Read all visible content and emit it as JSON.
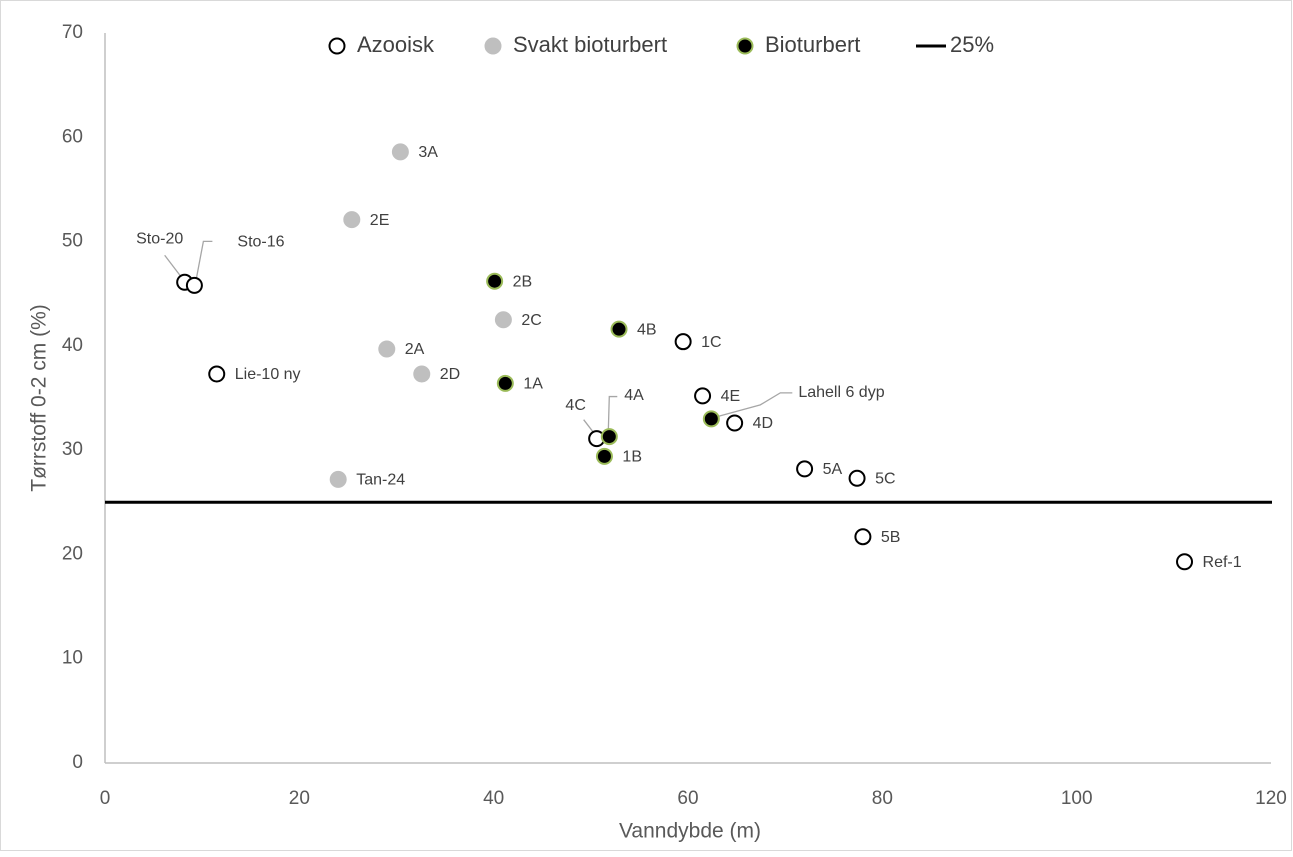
{
  "chart_data": {
    "type": "scatter",
    "xlabel": "Vanndybde (m)",
    "ylabel": "Tørrstoff 0-2 cm (%)",
    "xlim": [
      0,
      120
    ],
    "xticks": [
      0,
      20,
      40,
      60,
      80,
      100,
      120
    ],
    "ylim": [
      0,
      70
    ],
    "yticks": [
      0,
      10,
      20,
      30,
      40,
      50,
      60,
      70
    ],
    "legend": "top",
    "series": [
      {
        "name": "Azooisk",
        "color": "#ffffff",
        "edge": "#000000",
        "x": [
          8.2,
          9.2,
          11.5,
          50.6,
          59.5,
          61.5,
          64.8,
          72.0,
          77.4,
          78.0,
          111.1
        ],
        "values": [
          46.1,
          45.8,
          37.3,
          31.1,
          40.4,
          35.2,
          32.6,
          28.2,
          27.3,
          21.7,
          19.3
        ],
        "labels": [
          "Sto-20",
          "Sto-16",
          "Lie-10 ny",
          "4C",
          "1C",
          "4E",
          "4D",
          "5A",
          "5C",
          "5B",
          "Ref-1"
        ]
      },
      {
        "name": "Svakt bioturbert",
        "color": "#bfbfbf",
        "edge": "#bfbfbf",
        "x": [
          30.4,
          25.4,
          41.0,
          29.0,
          32.6,
          24.0
        ],
        "values": [
          58.6,
          52.1,
          42.5,
          39.7,
          37.3,
          27.2
        ],
        "labels": [
          "3A",
          "2E",
          "2C",
          "2A",
          "2D",
          "Tan-24"
        ]
      },
      {
        "name": "Bioturbert",
        "color": "#000000",
        "edge": "#9bbb59",
        "x": [
          40.1,
          52.9,
          41.2,
          51.9,
          51.4,
          62.4
        ],
        "values": [
          46.2,
          41.6,
          36.4,
          31.3,
          29.4,
          33.0
        ],
        "labels": [
          "2B",
          "4B",
          "1A",
          "4A",
          "1B",
          "Lahell 6 dyp"
        ]
      }
    ],
    "reference_line": {
      "name": "25%",
      "value": 25,
      "color": "#000000"
    }
  }
}
